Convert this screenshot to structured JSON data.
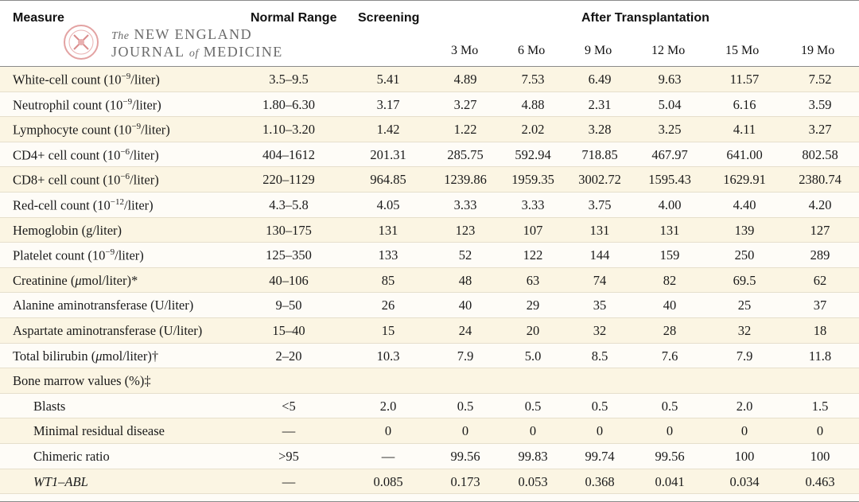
{
  "header": {
    "measure": "Measure",
    "normal_range": "Normal Range",
    "screening": "Screening",
    "after_transplantation": "After Transplantation",
    "months": [
      "3 Mo",
      "6 Mo",
      "9 Mo",
      "12 Mo",
      "15 Mo",
      "19 Mo"
    ]
  },
  "watermark": {
    "line1_the": "The",
    "line1": "NEW ENGLAND",
    "line2a": "JOURNAL",
    "line2_of": "of",
    "line2b": "MEDICINE"
  },
  "rows": [
    {
      "label": "White-cell count (10",
      "sup": "−9",
      "label_end": "/liter)",
      "range": "3.5–9.5",
      "screening": "5.41",
      "values": [
        "4.89",
        "7.53",
        "6.49",
        "9.63",
        "11.57",
        "7.52"
      ]
    },
    {
      "label": "Neutrophil count (10",
      "sup": "−9",
      "label_end": "/liter)",
      "range": "1.80–6.30",
      "screening": "3.17",
      "values": [
        "3.27",
        "4.88",
        "2.31",
        "5.04",
        "6.16",
        "3.59"
      ]
    },
    {
      "label": "Lymphocyte count (10",
      "sup": "−9",
      "label_end": "/liter)",
      "range": "1.10–3.20",
      "screening": "1.42",
      "values": [
        "1.22",
        "2.02",
        "3.28",
        "3.25",
        "4.11",
        "3.27"
      ]
    },
    {
      "label": "CD4+ cell count (10",
      "sup": "−6",
      "label_end": "/liter)",
      "range": "404–1612",
      "screening": "201.31",
      "values": [
        "285.75",
        "592.94",
        "718.85",
        "467.97",
        "641.00",
        "802.58"
      ]
    },
    {
      "label": "CD8+ cell count (10",
      "sup": "−6",
      "label_end": "/liter)",
      "range": "220–1129",
      "screening": "964.85",
      "values": [
        "1239.86",
        "1959.35",
        "3002.72",
        "1595.43",
        "1629.91",
        "2380.74"
      ]
    },
    {
      "label": "Red-cell count (10",
      "sup": "−12",
      "label_end": "/liter)",
      "range": "4.3–5.8",
      "screening": "4.05",
      "values": [
        "3.33",
        "3.33",
        "3.75",
        "4.00",
        "4.40",
        "4.20"
      ]
    },
    {
      "label": "Hemoglobin (g/liter)",
      "sup": "",
      "label_end": "",
      "range": "130–175",
      "screening": "131",
      "values": [
        "123",
        "107",
        "131",
        "131",
        "139",
        "127"
      ]
    },
    {
      "label": "Platelet count (10",
      "sup": "−9",
      "label_end": "/liter)",
      "range": "125–350",
      "screening": "133",
      "values": [
        "52",
        "122",
        "144",
        "159",
        "250",
        "289"
      ]
    },
    {
      "label": "Creatinine (",
      "mu": "μ",
      "label_end": "mol/liter)*",
      "range": "40–106",
      "screening": "85",
      "values": [
        "48",
        "63",
        "74",
        "82",
        "69.5",
        "62"
      ]
    },
    {
      "label": "Alanine aminotransferase (U/liter)",
      "sup": "",
      "label_end": "",
      "range": "9–50",
      "screening": "26",
      "values": [
        "40",
        "29",
        "35",
        "40",
        "25",
        "37"
      ]
    },
    {
      "label": "Aspartate aminotransferase (U/liter)",
      "sup": "",
      "label_end": "",
      "range": "15–40",
      "screening": "15",
      "values": [
        "24",
        "20",
        "32",
        "28",
        "32",
        "18"
      ]
    },
    {
      "label": "Total bilirubin (",
      "mu": "μ",
      "label_end": "mol/liter)†",
      "range": "2–20",
      "screening": "10.3",
      "values": [
        "7.9",
        "5.0",
        "8.5",
        "7.6",
        "7.9",
        "11.8"
      ]
    },
    {
      "label": "Bone marrow values (%)‡",
      "sup": "",
      "label_end": "",
      "range": "",
      "screening": "",
      "values": [
        "",
        "",
        "",
        "",
        "",
        ""
      ]
    },
    {
      "label": "Blasts",
      "sup": "",
      "label_end": "",
      "range": "<5",
      "screening": "2.0",
      "values": [
        "0.5",
        "0.5",
        "0.5",
        "0.5",
        "2.0",
        "1.5"
      ]
    },
    {
      "label": "Minimal residual disease",
      "sup": "",
      "label_end": "",
      "range": "—",
      "screening": "0",
      "values": [
        "0",
        "0",
        "0",
        "0",
        "0",
        "0"
      ]
    },
    {
      "label": "Chimeric ratio",
      "sup": "",
      "label_end": "",
      "range": ">95",
      "screening": "—",
      "values": [
        "99.56",
        "99.83",
        "99.74",
        "99.56",
        "100",
        "100"
      ]
    },
    {
      "label": "WT1–ABL",
      "sup": "",
      "label_end": "",
      "range": "—",
      "screening": "0.085",
      "values": [
        "0.173",
        "0.053",
        "0.368",
        "0.041",
        "0.034",
        "0.463"
      ]
    }
  ]
}
